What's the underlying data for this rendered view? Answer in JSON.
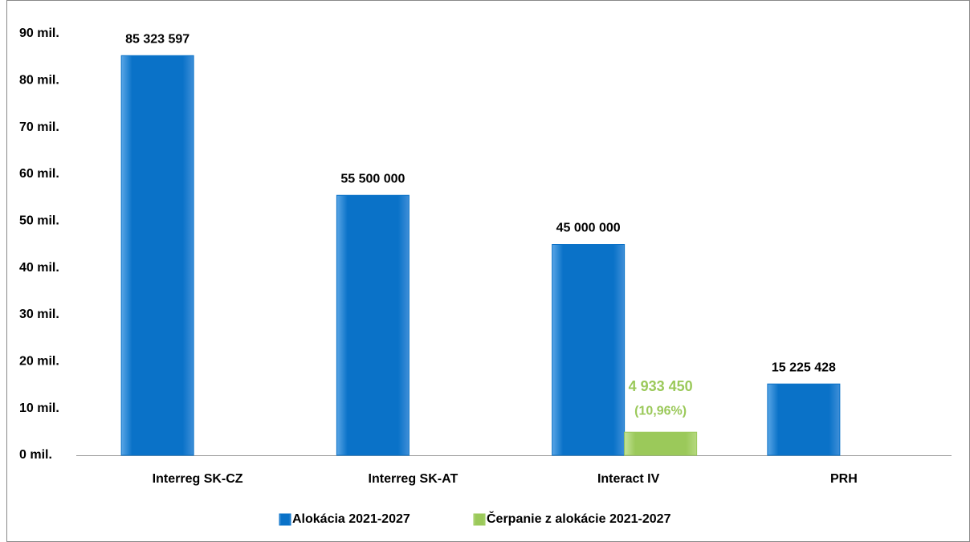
{
  "chart_data": {
    "type": "bar",
    "categories": [
      "Interreg SK-CZ",
      "Interreg SK-AT",
      "Interact IV",
      "PRH"
    ],
    "series": [
      {
        "name": "Alokácia 2021-2027",
        "color": "#0a72c8",
        "values": [
          85323597,
          55500000,
          45000000,
          15225428
        ],
        "value_labels": [
          "85 323 597",
          "55 500 000",
          "45 000 000",
          "15 225 428"
        ]
      },
      {
        "name": "Čerpanie z alokácie 2021-2027",
        "color": "#9bc95a",
        "values": [
          null,
          null,
          4933450,
          null
        ],
        "value_labels": [
          null,
          null,
          "4 933 450",
          null
        ]
      }
    ],
    "annotations": [
      {
        "text": "(10,96%)",
        "category": 2,
        "series": 1
      }
    ],
    "ylim": [
      0,
      90000000
    ],
    "yticks": [
      {
        "value": 0,
        "label": "0 mil."
      },
      {
        "value": 10000000,
        "label": "10 mil."
      },
      {
        "value": 20000000,
        "label": "20 mil."
      },
      {
        "value": 30000000,
        "label": "30 mil."
      },
      {
        "value": 40000000,
        "label": "40 mil."
      },
      {
        "value": 50000000,
        "label": "50 mil."
      },
      {
        "value": 60000000,
        "label": "60 mil."
      },
      {
        "value": 70000000,
        "label": "70 mil."
      },
      {
        "value": 80000000,
        "label": "80 mil."
      },
      {
        "value": 90000000,
        "label": "90 mil."
      }
    ],
    "legend": "bottom"
  }
}
